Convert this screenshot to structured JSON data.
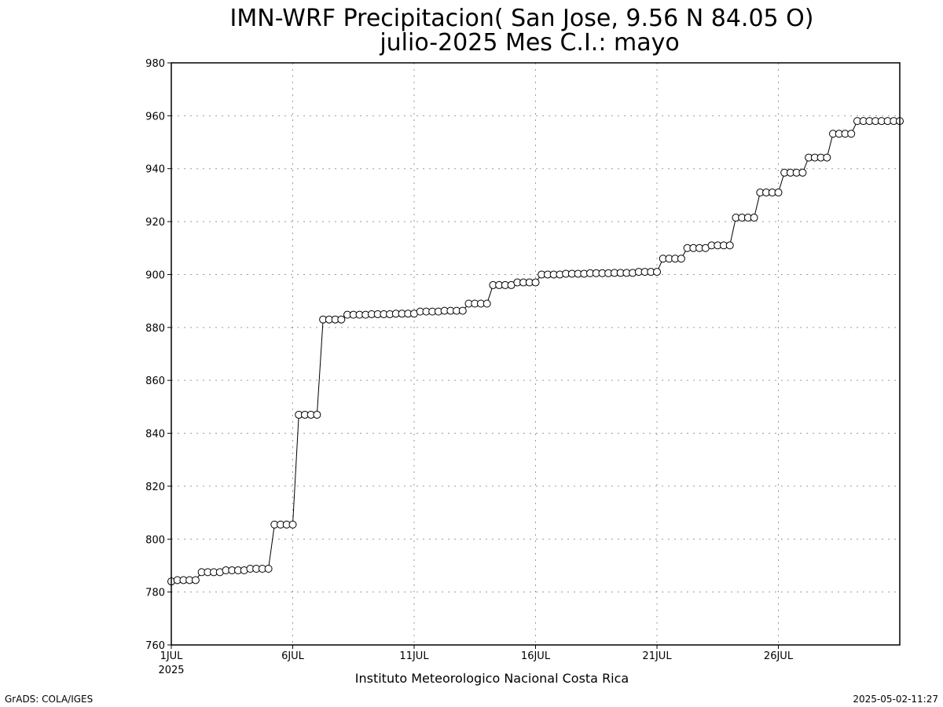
{
  "chart_data": {
    "type": "line",
    "title": "IMN-WRF  Precipitacion( San Jose, 9.56  N 84.05  O)",
    "subtitle": "julio-2025 Mes C.I.: mayo",
    "footer": "Instituto Meteorologico Nacional Costa Rica",
    "credit_left": "GrADS: COLA/IGES",
    "credit_right": "2025-05-02-11:27",
    "xlabel": "",
    "ylabel": "",
    "ylim": [
      760,
      980
    ],
    "y_ticks": [
      "760",
      "780",
      "800",
      "820",
      "840",
      "860",
      "880",
      "900",
      "920",
      "940",
      "960",
      "980"
    ],
    "x_tick_labels": [
      "1JUL",
      "6JUL",
      "11JUL",
      "16JUL",
      "21JUL",
      "26JUL"
    ],
    "x_tick_days": [
      1,
      6,
      11,
      16,
      21,
      26
    ],
    "x_year_label": "2025",
    "x_range_days": [
      1,
      31
    ],
    "grid": true,
    "series": [
      {
        "x": [
          1,
          1.25,
          1.5,
          1.75,
          2,
          2.25,
          2.5,
          2.75,
          3,
          3.25,
          3.5,
          3.75,
          4,
          4.25,
          4.5,
          4.75,
          5,
          5.25,
          5.5,
          5.75,
          6,
          6.25,
          6.5,
          6.75,
          7,
          7.25,
          7.5,
          7.75,
          8,
          8.25,
          8.5,
          8.75,
          9,
          9.25,
          9.5,
          9.75,
          10,
          10.25,
          10.5,
          10.75,
          11,
          11.25,
          11.5,
          11.75,
          12,
          12.25,
          12.5,
          12.75,
          13,
          13.25,
          13.5,
          13.75,
          14,
          14.25,
          14.5,
          14.75,
          15,
          15.25,
          15.5,
          15.75,
          16,
          16.25,
          16.5,
          16.75,
          17,
          17.25,
          17.5,
          17.75,
          18,
          18.25,
          18.5,
          18.75,
          19,
          19.25,
          19.5,
          19.75,
          20,
          20.25,
          20.5,
          20.75,
          21,
          21.25,
          21.5,
          21.75,
          22,
          22.25,
          22.5,
          22.75,
          23,
          23.25,
          23.5,
          23.75,
          24,
          24.25,
          24.5,
          24.75,
          25,
          25.25,
          25.5,
          25.75,
          26,
          26.25,
          26.5,
          26.75,
          27,
          27.25,
          27.5,
          27.75,
          28,
          28.25,
          28.5,
          28.75,
          29,
          29.25,
          29.5,
          29.75,
          30,
          30.25,
          30.5,
          30.75,
          31
        ],
        "values": [
          784,
          784.5,
          784.5,
          784.5,
          784.5,
          787.5,
          787.5,
          787.5,
          787.5,
          788.2,
          788.2,
          788.2,
          788.2,
          788.8,
          788.8,
          788.8,
          788.8,
          805.5,
          805.5,
          805.5,
          805.5,
          847,
          847,
          847,
          847,
          883,
          883,
          883,
          883,
          884.8,
          884.8,
          884.8,
          884.8,
          885,
          885,
          885,
          885,
          885.2,
          885.2,
          885.2,
          885.2,
          886,
          886,
          886,
          886,
          886.3,
          886.3,
          886.3,
          886.3,
          889,
          889,
          889,
          889,
          896,
          896,
          896,
          896,
          897,
          897,
          897,
          897,
          900,
          900,
          900,
          900,
          900.3,
          900.3,
          900.3,
          900.3,
          900.5,
          900.5,
          900.5,
          900.5,
          900.6,
          900.6,
          900.6,
          900.6,
          901,
          901,
          901,
          901,
          906,
          906,
          906,
          906,
          910,
          910,
          910,
          910,
          911,
          911,
          911,
          911,
          921.5,
          921.5,
          921.5,
          921.5,
          931,
          931,
          931,
          931,
          938.5,
          938.5,
          938.5,
          938.5,
          944.2,
          944.2,
          944.2,
          944.2,
          953.2,
          953.2,
          953.2,
          953.2,
          958,
          958,
          958,
          958,
          958,
          958,
          958,
          958
        ]
      }
    ]
  }
}
